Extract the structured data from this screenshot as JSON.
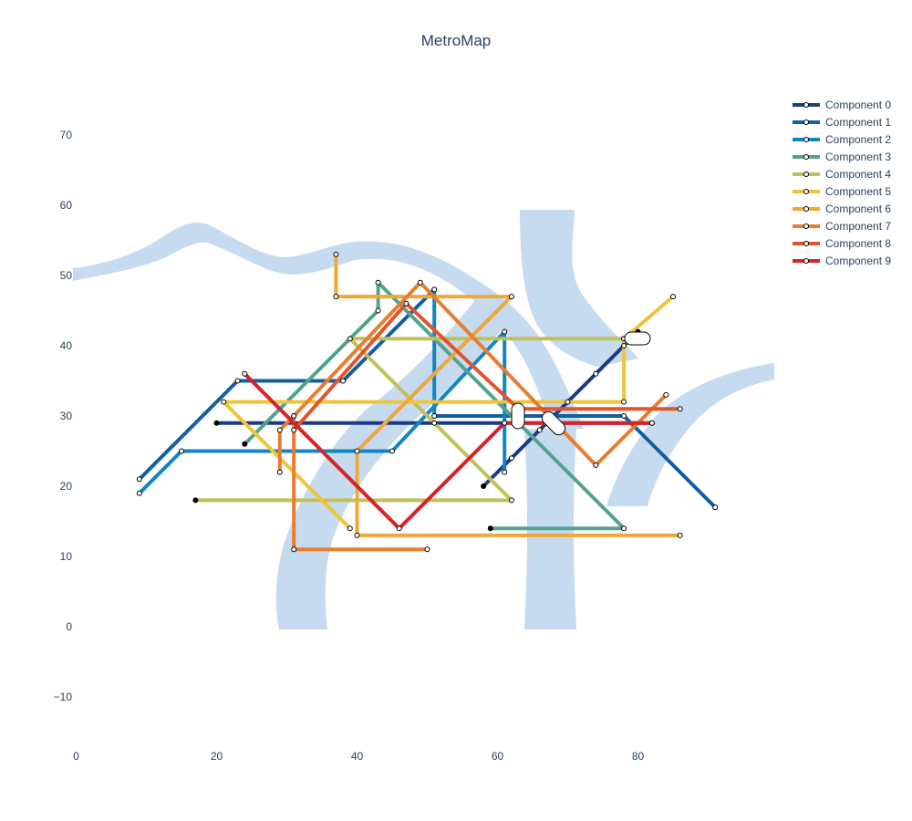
{
  "chart_data": {
    "type": "line",
    "title": "MetroMap",
    "xlabel": "",
    "ylabel": "",
    "xlim": [
      0,
      100
    ],
    "ylim": [
      -18,
      78
    ],
    "x_ticks": [
      0,
      20,
      40,
      60,
      80
    ],
    "x_tick_labels": [
      "0",
      "20",
      "40",
      "60",
      "80"
    ],
    "y_ticks": [
      -10,
      0,
      10,
      20,
      30,
      40,
      50,
      60,
      70
    ],
    "y_tick_labels": [
      "−10",
      "0",
      "10",
      "20",
      "30",
      "40",
      "50",
      "60",
      "70"
    ],
    "grid": false,
    "legend_position": "top-right",
    "background_feature": "river",
    "river_color": "#c6dbef",
    "series": [
      {
        "name": "Component 0",
        "color": "#1b3b86",
        "points": [
          [
            20,
            29
          ],
          [
            51,
            29
          ],
          [
            63,
            29
          ],
          [
            82,
            29
          ]
        ]
      },
      {
        "name": "Component 0",
        "color": "#1b3b86",
        "points": [
          [
            58,
            20
          ],
          [
            62,
            24
          ],
          [
            66,
            28
          ],
          [
            70,
            32
          ],
          [
            74,
            36
          ],
          [
            78,
            40
          ],
          [
            80,
            42
          ]
        ]
      },
      {
        "name": "Component 1",
        "color": "#0f5fa3",
        "points": [
          [
            9,
            21
          ],
          [
            23,
            35
          ],
          [
            38,
            35
          ],
          [
            51,
            48
          ]
        ]
      },
      {
        "name": "Component 1",
        "color": "#0f5fa3",
        "points": [
          [
            51,
            30
          ],
          [
            78,
            30
          ],
          [
            91,
            17
          ]
        ]
      },
      {
        "name": "Component 2",
        "color": "#1384c4",
        "points": [
          [
            9,
            19
          ],
          [
            15,
            25
          ],
          [
            45,
            25
          ],
          [
            61,
            42
          ],
          [
            61,
            22
          ]
        ]
      },
      {
        "name": "Component 2",
        "color": "#1384c4",
        "points": [
          [
            51,
            48
          ],
          [
            51,
            30
          ]
        ]
      },
      {
        "name": "Component 3",
        "color": "#52a38e",
        "points": [
          [
            24,
            26
          ],
          [
            43,
            45
          ],
          [
            43,
            49
          ],
          [
            78,
            14
          ],
          [
            59,
            14
          ]
        ]
      },
      {
        "name": "Component 4",
        "color": "#c2c05a",
        "points": [
          [
            17,
            18
          ],
          [
            62,
            18
          ],
          [
            39,
            41
          ],
          [
            78,
            41
          ]
        ]
      },
      {
        "name": "Component 5",
        "color": "#f0c43a",
        "points": [
          [
            39,
            14
          ],
          [
            21,
            32
          ],
          [
            78,
            32
          ],
          [
            78,
            41
          ],
          [
            85,
            47
          ]
        ]
      },
      {
        "name": "Component 6",
        "color": "#f0a73a",
        "points": [
          [
            37,
            53
          ],
          [
            37,
            47
          ],
          [
            62,
            47
          ],
          [
            40,
            25
          ],
          [
            40,
            13
          ],
          [
            86,
            13
          ]
        ]
      },
      {
        "name": "Component 7",
        "color": "#e87d30",
        "points": [
          [
            29,
            22
          ],
          [
            29,
            28
          ],
          [
            31,
            30
          ],
          [
            31,
            11
          ],
          [
            50,
            11
          ]
        ]
      },
      {
        "name": "Component 7",
        "color": "#e87d30",
        "points": [
          [
            31,
            30
          ],
          [
            49,
            49
          ],
          [
            74,
            23
          ],
          [
            84,
            33
          ]
        ]
      },
      {
        "name": "Component 8",
        "color": "#e2542c",
        "points": [
          [
            31,
            28
          ],
          [
            47,
            46
          ],
          [
            63,
            31
          ],
          [
            86,
            31
          ]
        ]
      },
      {
        "name": "Component 9",
        "color": "#d92226",
        "points": [
          [
            24,
            36
          ],
          [
            46,
            14
          ],
          [
            61,
            29
          ],
          [
            82,
            29
          ]
        ]
      }
    ],
    "legend_entries": [
      {
        "name": "Component 0",
        "color": "#1b3b86"
      },
      {
        "name": "Component 1",
        "color": "#0f5fa3"
      },
      {
        "name": "Component 2",
        "color": "#1384c4"
      },
      {
        "name": "Component 3",
        "color": "#52a38e"
      },
      {
        "name": "Component 4",
        "color": "#c2c05a"
      },
      {
        "name": "Component 5",
        "color": "#f0c43a"
      },
      {
        "name": "Component 6",
        "color": "#f0a73a"
      },
      {
        "name": "Component 7",
        "color": "#e87d30"
      },
      {
        "name": "Component 8",
        "color": "#e2542c"
      },
      {
        "name": "Component 9",
        "color": "#d92226"
      }
    ]
  }
}
